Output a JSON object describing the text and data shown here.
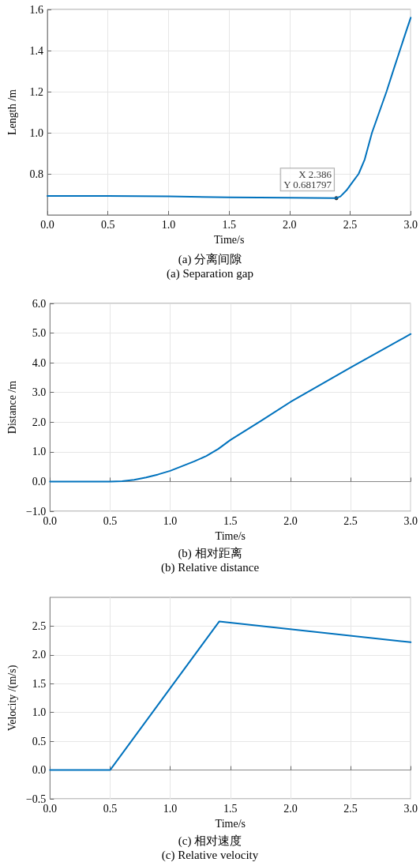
{
  "chart_data": [
    {
      "type": "line",
      "title": "(a) 分离间隙",
      "subtitle": "(a) Separation gap",
      "xlabel": "Time/s",
      "ylabel": "Length /m",
      "grid": true,
      "x": [
        0,
        0.5,
        1.0,
        1.5,
        2.0,
        2.386,
        2.42,
        2.47,
        2.52,
        2.57,
        2.62,
        2.68,
        2.74,
        2.8,
        2.86,
        2.91,
        2.96,
        3.0
      ],
      "series": [
        {
          "color": "#0072bd",
          "values": [
            0.692,
            0.692,
            0.69,
            0.686,
            0.684,
            0.682,
            0.69,
            0.72,
            0.76,
            0.8,
            0.87,
            1.0,
            1.1,
            1.2,
            1.31,
            1.4,
            1.49,
            1.56
          ]
        }
      ],
      "annotations": [
        {
          "text": "X 2.386\nY 0.681797",
          "x": 2.386,
          "y": 0.681797
        }
      ],
      "xlim": [
        0,
        3
      ],
      "xticks": [
        {
          "value": 0,
          "label": "0.0"
        },
        0.5,
        {
          "value": 1,
          "label": "1.0"
        },
        1.5,
        {
          "value": 2,
          "label": "2.0"
        },
        2.5,
        {
          "value": 3,
          "label": "3.0"
        }
      ],
      "ylim": [
        0.6,
        1.6
      ],
      "yticks": [
        0.8,
        {
          "value": 1,
          "label": "1.0"
        },
        1.2,
        1.4,
        1.6
      ]
    },
    {
      "type": "line",
      "title": "(b) 相对距离",
      "subtitle": "(b) Relative distance",
      "xlabel": "Time/s",
      "ylabel": "Distance /m",
      "grid": true,
      "x": [
        0,
        0.5,
        0.6,
        0.7,
        0.8,
        0.9,
        1.0,
        1.1,
        1.2,
        1.3,
        1.4,
        1.5,
        1.75,
        2.0,
        2.5,
        3.0
      ],
      "series": [
        {
          "color": "#0072bd",
          "values": [
            0,
            0,
            0.01,
            0.06,
            0.14,
            0.24,
            0.36,
            0.52,
            0.68,
            0.86,
            1.1,
            1.4,
            2.03,
            2.68,
            3.84,
            4.97
          ]
        }
      ],
      "xlim": [
        0,
        3
      ],
      "xticks": [
        {
          "value": 0,
          "label": "0.0"
        },
        0.5,
        {
          "value": 1,
          "label": "1.0"
        },
        1.5,
        {
          "value": 2,
          "label": "2.0"
        },
        2.5,
        {
          "value": 3,
          "label": "3.0"
        }
      ],
      "ylim": [
        -1,
        6
      ],
      "yticks": [
        {
          "value": -1,
          "label": "−1.0"
        },
        {
          "value": 0,
          "label": "0.0"
        },
        {
          "value": 1,
          "label": "1.0"
        },
        {
          "value": 2,
          "label": "2.0"
        },
        {
          "value": 3,
          "label": "3.0"
        },
        {
          "value": 4,
          "label": "4.0"
        },
        {
          "value": 5,
          "label": "5.0"
        },
        {
          "value": 6,
          "label": "6.0"
        }
      ]
    },
    {
      "type": "line",
      "title": "(c) 相对速度",
      "subtitle": "(c) Relative velocity",
      "xlabel": "Time/s",
      "ylabel": "Velocity /(m/s)",
      "grid": true,
      "x": [
        0,
        0.5,
        1.407,
        3.0
      ],
      "series": [
        {
          "color": "#0072bd",
          "values": [
            0,
            0,
            2.58,
            2.22
          ]
        }
      ],
      "xlim": [
        0,
        3
      ],
      "xticks": [
        {
          "value": 0,
          "label": "0.0"
        },
        0.5,
        {
          "value": 1,
          "label": "1.0"
        },
        1.5,
        {
          "value": 2,
          "label": "2.0"
        },
        2.5,
        {
          "value": 3,
          "label": "3.0"
        }
      ],
      "ylim": [
        -0.5,
        3
      ],
      "yticks": [
        {
          "value": -0.5,
          "label": "−0.5"
        },
        {
          "value": 0,
          "label": "0.0"
        },
        0.5,
        {
          "value": 1,
          "label": "1.0"
        },
        1.5,
        {
          "value": 2,
          "label": "2.0"
        },
        2.5
      ]
    }
  ]
}
